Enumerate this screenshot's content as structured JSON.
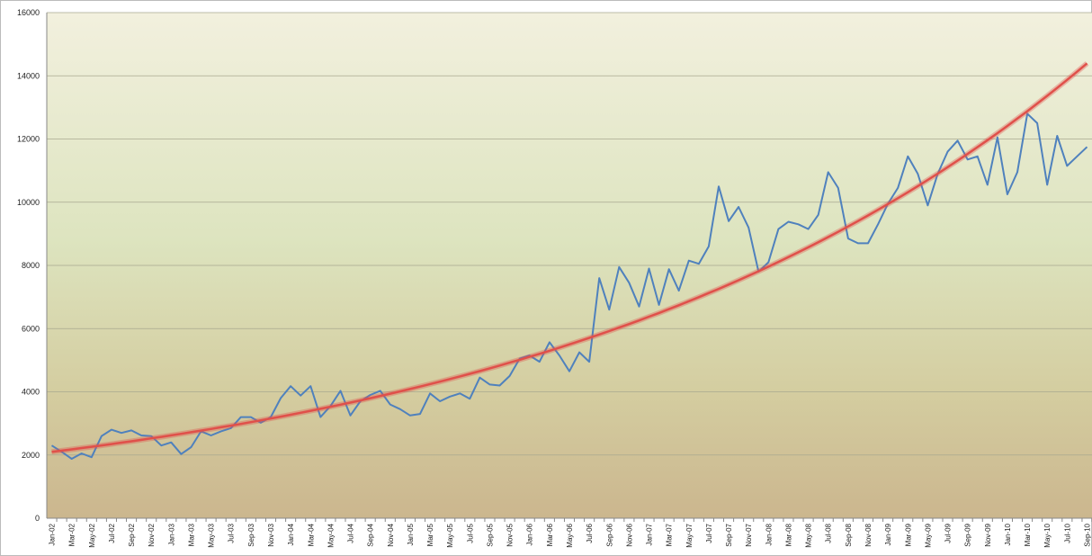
{
  "chart_data": {
    "type": "line",
    "categories": [
      "Jan-02",
      null,
      "Mar-02",
      null,
      "May-02",
      null,
      "Jul-02",
      null,
      "Sep-02",
      null,
      "Nov-02",
      null,
      "Jan-03",
      null,
      "Mar-03",
      null,
      "May-03",
      null,
      "Jul-03",
      null,
      "Sep-03",
      null,
      "Nov-03",
      null,
      "Jan-04",
      null,
      "Mar-04",
      null,
      "May-04",
      null,
      "Jul-04",
      null,
      "Sep-04",
      null,
      "Nov-04",
      null,
      "Jan-05",
      null,
      "Mar-05",
      null,
      "May-05",
      null,
      "Jul-05",
      null,
      "Sep-05",
      null,
      "Nov-05",
      null,
      "Jan-06",
      null,
      "Mar-06",
      null,
      "May-06",
      null,
      "Jul-06",
      null,
      "Sep-06",
      null,
      "Nov-06",
      null,
      "Jan-07",
      null,
      "Mar-07",
      null,
      "May-07",
      null,
      "Jul-07",
      null,
      "Sep-07",
      null,
      "Nov-07",
      null,
      "Jan-08",
      null,
      "Mar-08",
      null,
      "May-08",
      null,
      "Jul-08",
      null,
      "Sep-08",
      null,
      "Nov-08",
      null,
      "Jan-09",
      null,
      "Mar-09",
      null,
      "May-09",
      null,
      "Jul-09",
      null,
      "Sep-09",
      null,
      "Nov-09",
      null,
      "Jan-10",
      null,
      "Mar-10",
      null,
      "May-10",
      null,
      "Jul-10",
      null,
      "Sep-10"
    ],
    "series": [
      {
        "color": "#4f81bd",
        "values": [
          2300,
          2100,
          1880,
          2050,
          1930,
          2600,
          2800,
          2700,
          2780,
          2620,
          2600,
          2300,
          2400,
          2030,
          2250,
          2750,
          2620,
          2750,
          2850,
          3200,
          3200,
          3020,
          3200,
          3800,
          4180,
          3880,
          4180,
          3200,
          3550,
          4030,
          3250,
          3700,
          3900,
          4030,
          3600,
          3450,
          3250,
          3300,
          3950,
          3700,
          3850,
          3950,
          3780,
          4450,
          4230,
          4200,
          4500,
          5050,
          5150,
          4950,
          5570,
          5150,
          4650,
          5250,
          4950,
          7600,
          6600,
          7950,
          7450,
          6700,
          7900,
          6750,
          7880,
          7200,
          8150,
          8050,
          8600,
          10500,
          9400,
          9850,
          9200,
          7800,
          8100,
          9150,
          9380,
          9300,
          9150,
          9600,
          10950,
          10450,
          8850,
          8700,
          8700,
          9300,
          9950,
          10450,
          11450,
          10900,
          9900,
          10900,
          11600,
          11950,
          11350,
          11450,
          10550,
          12050,
          10250,
          10950,
          12800,
          12500,
          10550,
          12100,
          11150,
          11450,
          11750
        ]
      },
      {
        "color": "#e0504a",
        "values": [
          2100,
          2139,
          2179,
          2220,
          2261,
          2304,
          2347,
          2391,
          2435,
          2481,
          2527,
          2574,
          2622,
          2671,
          2721,
          2772,
          2824,
          2877,
          2930,
          2985,
          3041,
          3098,
          3156,
          3215,
          3275,
          3336,
          3398,
          3462,
          3526,
          3592,
          3659,
          3728,
          3797,
          3868,
          3941,
          4014,
          4089,
          4166,
          4244,
          4323,
          4404,
          4486,
          4570,
          4655,
          4742,
          4831,
          4921,
          5013,
          5107,
          5202,
          5299,
          5398,
          5499,
          5602,
          5706,
          5813,
          5921,
          6032,
          6144,
          6259,
          6376,
          6495,
          6616,
          6740,
          6866,
          6994,
          7125,
          7258,
          7393,
          7531,
          7672,
          7815,
          7961,
          8110,
          8261,
          8416,
          8573,
          8733,
          8896,
          9062,
          9232,
          9404,
          9580,
          9759,
          9941,
          10127,
          10316,
          10509,
          10705,
          10905,
          11109,
          11316,
          11528,
          11743,
          11962,
          12186,
          12413,
          12645,
          12881,
          13122,
          13367,
          13617,
          13871,
          14130,
          14394
        ]
      }
    ],
    "ylim": [
      0,
      16000
    ],
    "yticks": [
      0,
      2000,
      4000,
      6000,
      8000,
      10000,
      12000,
      14000,
      16000
    ],
    "grid": true
  }
}
